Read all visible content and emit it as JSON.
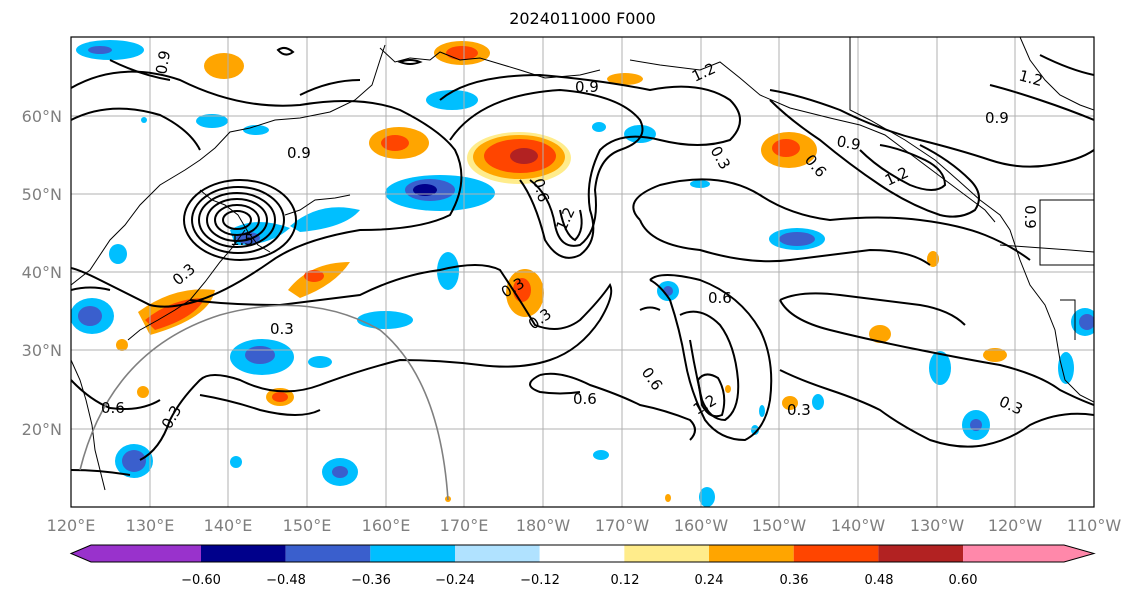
{
  "title": "2024011000 F000",
  "map": {
    "lat_ticks": [
      "60°N",
      "50°N",
      "40°N",
      "30°N",
      "20°N"
    ],
    "lon_ticks": [
      "120°E",
      "130°E",
      "140°E",
      "150°E",
      "160°E",
      "170°E",
      "180°W",
      "170°W",
      "160°W",
      "150°W",
      "140°W",
      "130°W",
      "120°W",
      "110°W"
    ],
    "contour_labels": [
      "0.9",
      "0.9",
      "0.9",
      "0.9",
      "0.9",
      "1.2",
      "1.2",
      "1.2",
      "1.2",
      "1.2",
      "0.6",
      "0.6",
      "0.6",
      "0.6",
      "0.6",
      "0.6",
      "0.3",
      "0.3",
      "0.3",
      "0.3",
      "0.3",
      "0.3",
      "0.3",
      "0.3",
      "1.5",
      "0.9"
    ]
  },
  "colorbar": {
    "tick_labels": [
      "−0.60",
      "−0.48",
      "−0.36",
      "−0.24",
      "−0.12",
      "0.12",
      "0.24",
      "0.36",
      "0.48",
      "0.60"
    ],
    "colors": [
      "#9932cc",
      "#00008b",
      "#3a5fcd",
      "#00bfff",
      "#b0e2ff",
      "#ffffff",
      "#ffec8b",
      "#ffa500",
      "#ff4500",
      "#b22222",
      "#ff88aa"
    ]
  }
}
